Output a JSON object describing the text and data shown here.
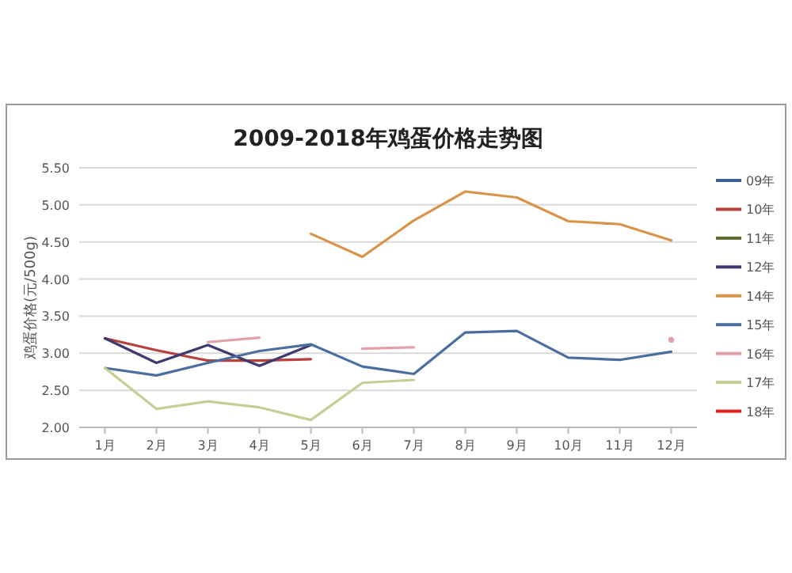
{
  "chart_data": {
    "type": "line",
    "title": "2009-2018年鸡蛋价格走势图",
    "ylabel": "鸡蛋价格(元/500g)",
    "categories": [
      "1月",
      "2月",
      "3月",
      "4月",
      "5月",
      "6月",
      "7月",
      "8月",
      "9月",
      "10月",
      "11月",
      "12月"
    ],
    "series": [
      {
        "name": "09年",
        "color": "#3f5f9a",
        "values": [
          null,
          null,
          null,
          null,
          null,
          null,
          null,
          null,
          null,
          null,
          null,
          null
        ]
      },
      {
        "name": "10年",
        "color": "#b8403c",
        "values": [
          3.2,
          3.04,
          2.9,
          2.9,
          2.92,
          null,
          null,
          null,
          null,
          null,
          null,
          null
        ]
      },
      {
        "name": "11年",
        "color": "#5c6b2e",
        "values": [
          null,
          null,
          null,
          null,
          null,
          null,
          null,
          null,
          null,
          null,
          null,
          null
        ]
      },
      {
        "name": "12年",
        "color": "#3c3a6e",
        "values": [
          3.2,
          2.87,
          3.11,
          2.83,
          3.11,
          null,
          null,
          null,
          null,
          null,
          null,
          null
        ]
      },
      {
        "name": "14年",
        "color": "#d9944a",
        "values": [
          null,
          null,
          null,
          null,
          4.61,
          4.3,
          4.79,
          5.18,
          5.1,
          4.78,
          4.74,
          4.52
        ]
      },
      {
        "name": "15年",
        "color": "#4a6f9e",
        "values": [
          2.8,
          2.7,
          2.87,
          3.03,
          3.12,
          2.82,
          2.72,
          3.28,
          3.3,
          2.94,
          2.91,
          3.02
        ]
      },
      {
        "name": "16年",
        "color": "#e3a0a8",
        "values": [
          null,
          null,
          3.15,
          3.21,
          null,
          3.06,
          3.08,
          null,
          null,
          null,
          null,
          3.18
        ]
      },
      {
        "name": "17年",
        "color": "#c5cf94",
        "values": [
          2.8,
          2.25,
          2.35,
          2.27,
          2.1,
          2.6,
          2.64,
          null,
          null,
          null,
          null,
          null
        ]
      },
      {
        "name": "18年",
        "color": "#e0201c",
        "values": [
          null,
          null,
          null,
          null,
          null,
          null,
          null,
          null,
          null,
          null,
          null,
          null
        ]
      }
    ],
    "ylim": [
      2,
      5.5
    ],
    "yticks": [
      {
        "value": 2,
        "label": "2.00"
      },
      {
        "value": 2.5,
        "label": "2.50"
      },
      {
        "value": 3,
        "label": "3.00"
      },
      {
        "value": 3.5,
        "label": "3.50"
      },
      {
        "value": 4,
        "label": "4.00"
      },
      {
        "value": 4.5,
        "label": "4.50"
      },
      {
        "value": 5,
        "label": "5.00"
      },
      {
        "value": 5.5,
        "label": "5.50"
      }
    ],
    "grid": "y",
    "legend": "right",
    "marker": "none",
    "line_style": "solid"
  }
}
